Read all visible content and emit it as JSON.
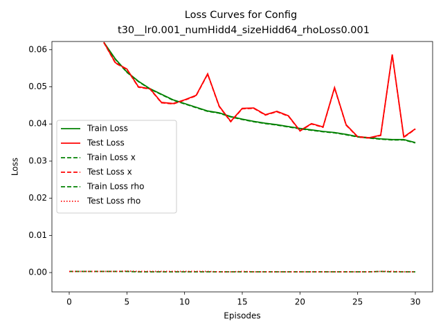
{
  "chart_data": {
    "type": "line",
    "title": [
      "Loss Curves for Config",
      "t30__lr0.001_numHidd4_sizeHidd64_rhoLoss0.001"
    ],
    "xlabel": "Episodes",
    "ylabel": "Loss",
    "x": [
      0,
      1,
      2,
      3,
      4,
      5,
      6,
      7,
      8,
      9,
      10,
      11,
      12,
      13,
      14,
      15,
      16,
      17,
      18,
      19,
      20,
      21,
      22,
      23,
      24,
      25,
      26,
      27,
      28,
      29,
      30
    ],
    "xlim": [
      -1.5,
      31.5
    ],
    "xticks": [
      0,
      5,
      10,
      15,
      20,
      25,
      30
    ],
    "ylim": [
      -0.0052,
      0.0622
    ],
    "yticks": [
      {
        "value": 0,
        "label": "0.00"
      },
      {
        "value": 0.01,
        "label": "0.01"
      },
      {
        "value": 0.02,
        "label": "0.02"
      },
      {
        "value": 0.03,
        "label": "0.03"
      },
      {
        "value": 0.04,
        "label": "0.04"
      },
      {
        "value": 0.05,
        "label": "0.05"
      },
      {
        "value": 0.06,
        "label": "0.06"
      }
    ],
    "grid": false,
    "legend": "center left",
    "series": [
      {
        "name": "Train Loss",
        "color": "#008000",
        "linestyle": "solid",
        "values": [
          null,
          null,
          null,
          0.062,
          0.0575,
          0.054,
          0.0515,
          0.0495,
          0.048,
          0.0465,
          0.0455,
          0.0445,
          0.0435,
          0.043,
          0.042,
          0.0413,
          0.0407,
          0.0402,
          0.0398,
          0.0393,
          0.0388,
          0.0384,
          0.038,
          0.0377,
          0.0372,
          0.0366,
          0.0363,
          0.036,
          0.0358,
          0.0358,
          0.035
        ]
      },
      {
        "name": "Test Loss",
        "color": "#ff0000",
        "linestyle": "solid",
        "values": [
          null,
          null,
          null,
          0.062,
          0.0565,
          0.0548,
          0.05,
          0.0495,
          0.0458,
          0.0455,
          0.0465,
          0.0477,
          0.0535,
          0.0448,
          0.0407,
          0.0442,
          0.0443,
          0.0425,
          0.0434,
          0.0422,
          0.0382,
          0.0401,
          0.0392,
          0.0498,
          0.0398,
          0.0366,
          0.0363,
          0.037,
          0.0587,
          0.0365,
          0.0387
        ]
      },
      {
        "name": "Train Loss x",
        "color": "#008000",
        "linestyle": "dashed",
        "values": [
          null,
          null,
          null,
          0.0619,
          0.0574,
          0.0539,
          0.0514,
          0.0494,
          0.0479,
          0.0464,
          0.0454,
          0.0444,
          0.0434,
          0.0429,
          0.0419,
          0.0412,
          0.0406,
          0.0401,
          0.0397,
          0.0392,
          0.0387,
          0.0383,
          0.0379,
          0.0376,
          0.0371,
          0.0365,
          0.0362,
          0.0359,
          0.0357,
          0.0357,
          0.0349
        ]
      },
      {
        "name": "Test Loss x",
        "color": "#ff0000",
        "linestyle": "dashed",
        "values": [
          null,
          null,
          null,
          0.0619,
          0.0564,
          0.0547,
          0.0499,
          0.0494,
          0.0457,
          0.0454,
          0.0464,
          0.0476,
          0.0534,
          0.0447,
          0.0406,
          0.0441,
          0.0442,
          0.0424,
          0.0433,
          0.0421,
          0.0381,
          0.04,
          0.0391,
          0.0497,
          0.0397,
          0.0365,
          0.0362,
          0.0369,
          0.0586,
          0.0364,
          0.0386
        ]
      },
      {
        "name": "Train Loss rho",
        "color": "#008000",
        "linestyle": "dashed",
        "values": [
          0.0003,
          0.0003,
          0.0003,
          0.0003,
          0.0003,
          0.0003,
          0.0002,
          0.0002,
          0.0002,
          0.0002,
          0.0002,
          0.0002,
          0.0002,
          0.0002,
          0.0002,
          0.0002,
          0.0002,
          0.0002,
          0.0002,
          0.0002,
          0.0002,
          0.0002,
          0.0002,
          0.0002,
          0.0002,
          0.0002,
          0.0002,
          0.0003,
          0.0002,
          0.0002,
          0.0002
        ]
      },
      {
        "name": "Test Loss rho",
        "color": "#ff0000",
        "linestyle": "dotted",
        "values": [
          0.0003,
          0.0003,
          0.0003,
          0.0003,
          0.0003,
          0.0004,
          0.0003,
          0.0003,
          0.0003,
          0.0003,
          0.0003,
          0.0003,
          0.0003,
          0.0002,
          0.0002,
          0.0003,
          0.0002,
          0.0002,
          0.0002,
          0.0002,
          0.0002,
          0.0002,
          0.0002,
          0.0002,
          0.0002,
          0.0002,
          0.0002,
          0.0003,
          0.0003,
          0.0002,
          0.0002
        ]
      }
    ]
  }
}
